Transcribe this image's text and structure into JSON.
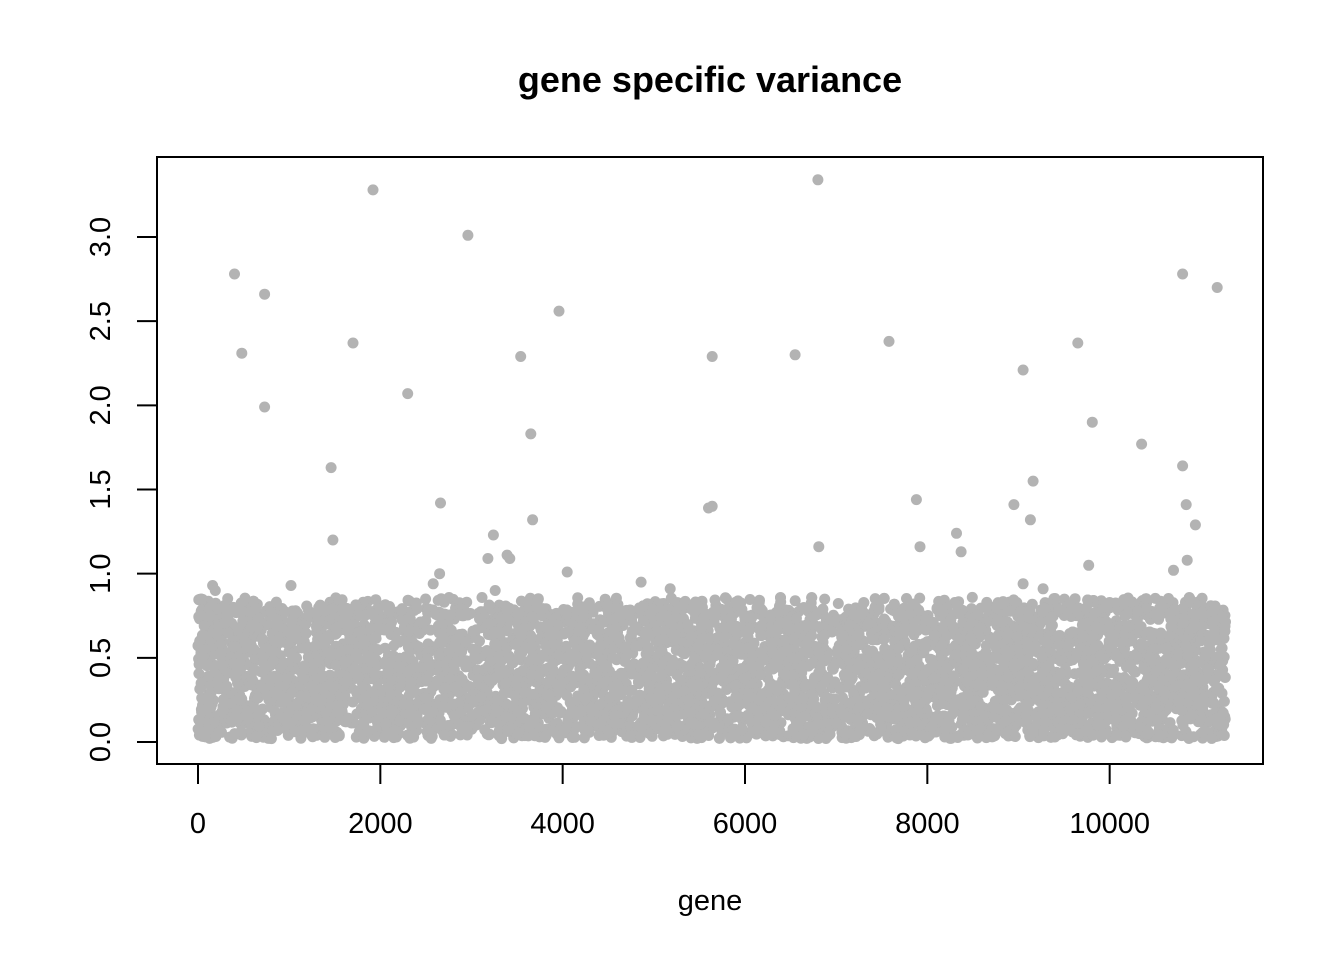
{
  "chart_data": {
    "type": "scatter",
    "title": "gene specific variance",
    "xlabel": "gene",
    "ylabel": "",
    "xlim": [
      -520,
      11200
    ],
    "ylim": [
      -0.1,
      3.5
    ],
    "x_ticks": [
      0,
      2000,
      4000,
      6000,
      8000,
      10000
    ],
    "x_tick_labels": [
      "0",
      "2000",
      "4000",
      "6000",
      "8000",
      "10000"
    ],
    "y_ticks": [
      0.0,
      0.5,
      1.0,
      1.5,
      2.0,
      2.5,
      3.0
    ],
    "y_tick_labels": [
      "0.0",
      "0.5",
      "1.0",
      "1.5",
      "2.0",
      "2.5",
      "3.0"
    ],
    "point_color": "#b3b3b3",
    "grid": false,
    "dense_band": {
      "x_range": [
        0,
        11270
      ],
      "y_range": [
        0.0,
        0.8
      ],
      "n_points": 11270,
      "note_values": "approximately uniform cloud of gene variances between 0 and ~0.85"
    },
    "outliers": [
      {
        "x": 400,
        "y": 2.78
      },
      {
        "x": 480,
        "y": 2.31
      },
      {
        "x": 730,
        "y": 2.66
      },
      {
        "x": 730,
        "y": 1.99
      },
      {
        "x": 1020,
        "y": 0.93
      },
      {
        "x": 1460,
        "y": 1.63
      },
      {
        "x": 1480,
        "y": 1.2
      },
      {
        "x": 1700,
        "y": 2.37
      },
      {
        "x": 1920,
        "y": 3.28
      },
      {
        "x": 2300,
        "y": 2.07
      },
      {
        "x": 2580,
        "y": 0.94
      },
      {
        "x": 2650,
        "y": 1.0
      },
      {
        "x": 2660,
        "y": 1.42
      },
      {
        "x": 2960,
        "y": 3.01
      },
      {
        "x": 3180,
        "y": 1.09
      },
      {
        "x": 3240,
        "y": 1.23
      },
      {
        "x": 3260,
        "y": 0.9
      },
      {
        "x": 3390,
        "y": 1.11
      },
      {
        "x": 3420,
        "y": 1.09
      },
      {
        "x": 3540,
        "y": 2.29
      },
      {
        "x": 3650,
        "y": 1.83
      },
      {
        "x": 3670,
        "y": 1.32
      },
      {
        "x": 3960,
        "y": 2.56
      },
      {
        "x": 4050,
        "y": 1.01
      },
      {
        "x": 4860,
        "y": 0.95
      },
      {
        "x": 5180,
        "y": 0.91
      },
      {
        "x": 5600,
        "y": 1.39
      },
      {
        "x": 5640,
        "y": 1.4
      },
      {
        "x": 5640,
        "y": 2.29
      },
      {
        "x": 6550,
        "y": 2.3
      },
      {
        "x": 6800,
        "y": 3.34
      },
      {
        "x": 6810,
        "y": 1.16
      },
      {
        "x": 7580,
        "y": 2.38
      },
      {
        "x": 7880,
        "y": 1.44
      },
      {
        "x": 7920,
        "y": 1.16
      },
      {
        "x": 8320,
        "y": 1.24
      },
      {
        "x": 8370,
        "y": 1.13
      },
      {
        "x": 8950,
        "y": 1.41
      },
      {
        "x": 9050,
        "y": 0.94
      },
      {
        "x": 9050,
        "y": 2.21
      },
      {
        "x": 9130,
        "y": 1.32
      },
      {
        "x": 9160,
        "y": 1.55
      },
      {
        "x": 9270,
        "y": 0.91
      },
      {
        "x": 9650,
        "y": 2.37
      },
      {
        "x": 9770,
        "y": 1.05
      },
      {
        "x": 9810,
        "y": 1.9
      },
      {
        "x": 10350,
        "y": 1.77
      },
      {
        "x": 10700,
        "y": 1.02
      },
      {
        "x": 10800,
        "y": 2.78
      },
      {
        "x": 10800,
        "y": 1.64
      },
      {
        "x": 10840,
        "y": 1.41
      },
      {
        "x": 10850,
        "y": 1.08
      },
      {
        "x": 10940,
        "y": 1.29
      },
      {
        "x": 11180,
        "y": 2.7
      },
      {
        "x": 160,
        "y": 0.93
      },
      {
        "x": 190,
        "y": 0.9
      }
    ]
  }
}
